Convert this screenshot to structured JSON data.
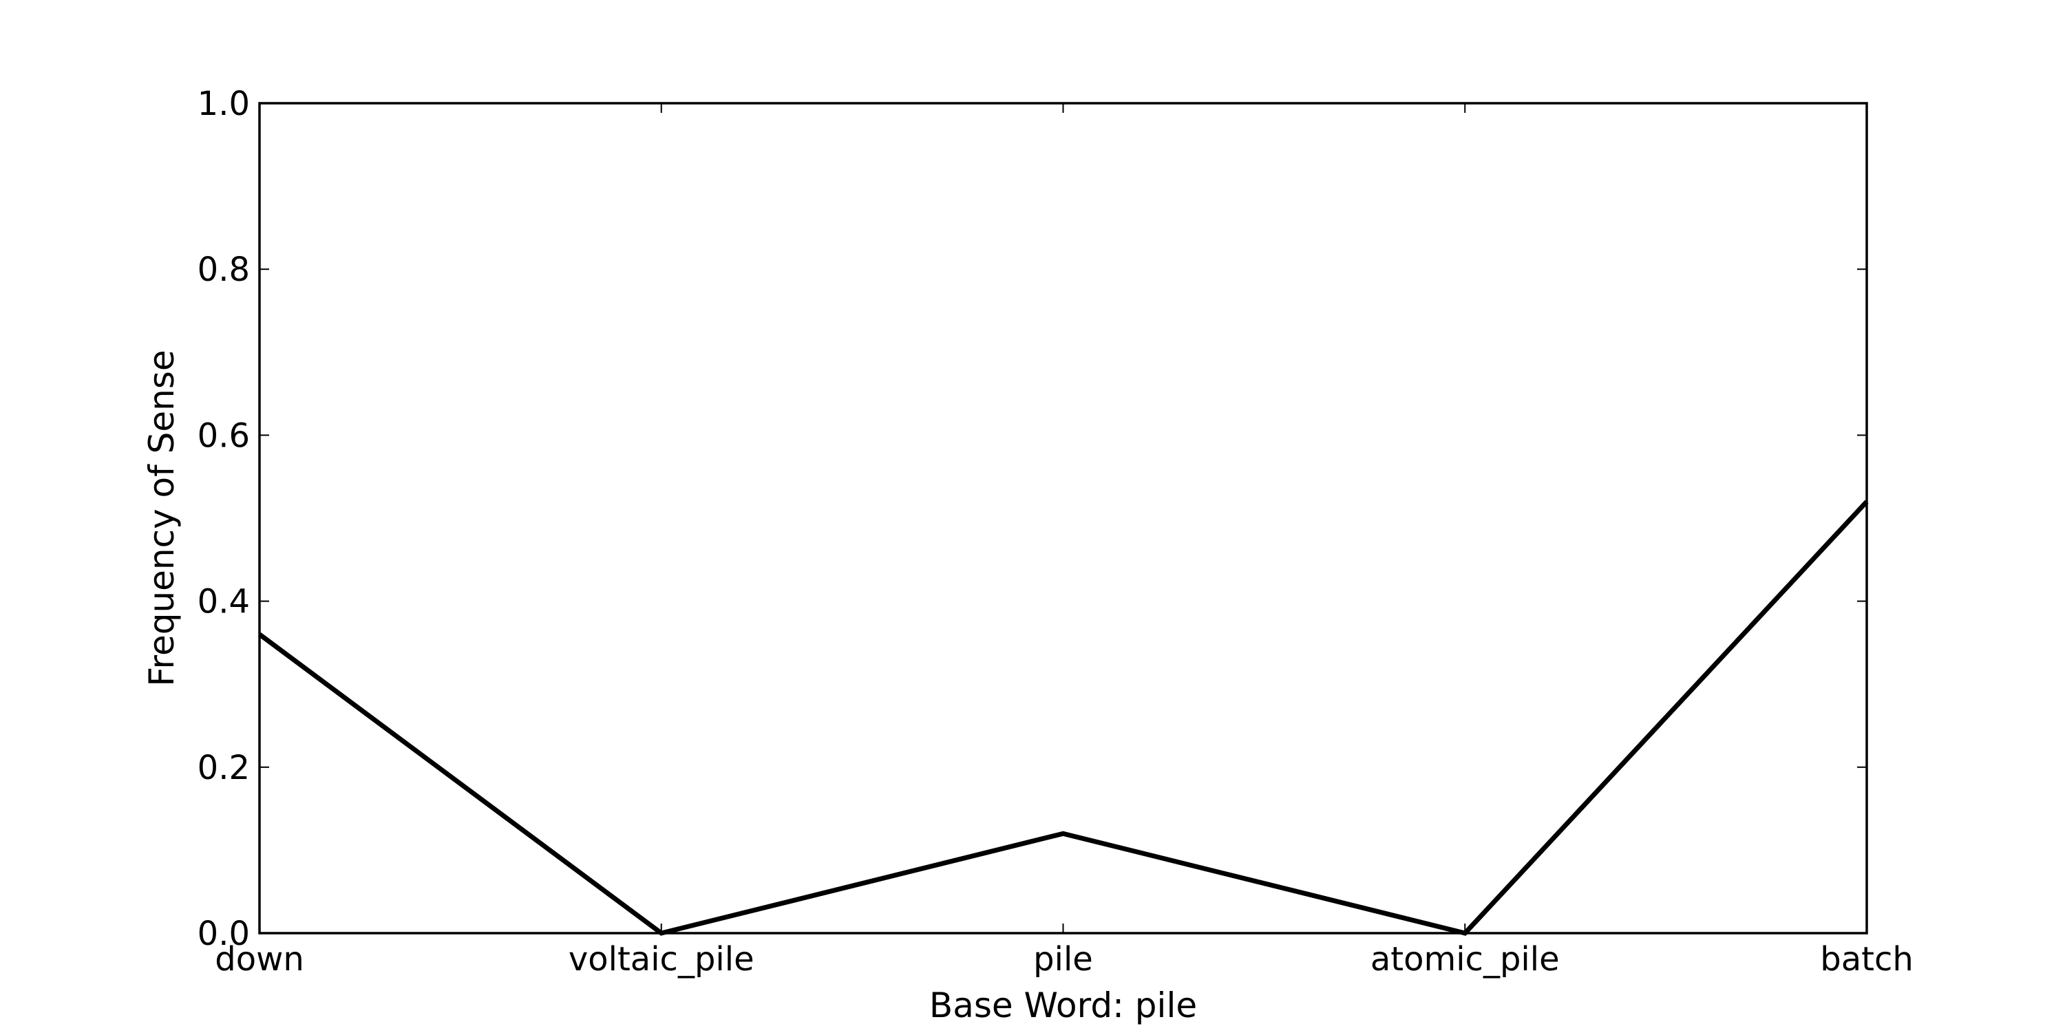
{
  "chart_data": {
    "type": "line",
    "title": "",
    "xlabel": "Base Word: pile",
    "ylabel": "Frequency of Sense",
    "categories": [
      "down",
      "voltaic_pile",
      "pile",
      "atomic_pile",
      "batch"
    ],
    "series": [
      {
        "values": [
          0.36,
          0.0,
          0.12,
          0.0,
          0.52
        ]
      }
    ],
    "ylim": [
      0,
      1.0
    ],
    "yticks": [
      "0.0",
      "0.2",
      "0.4",
      "0.6",
      "0.8",
      "1.0"
    ],
    "grid": false,
    "legend": "none",
    "colors": {
      "line": "#000000",
      "axes": "#000000",
      "background": "#ffffff"
    }
  }
}
